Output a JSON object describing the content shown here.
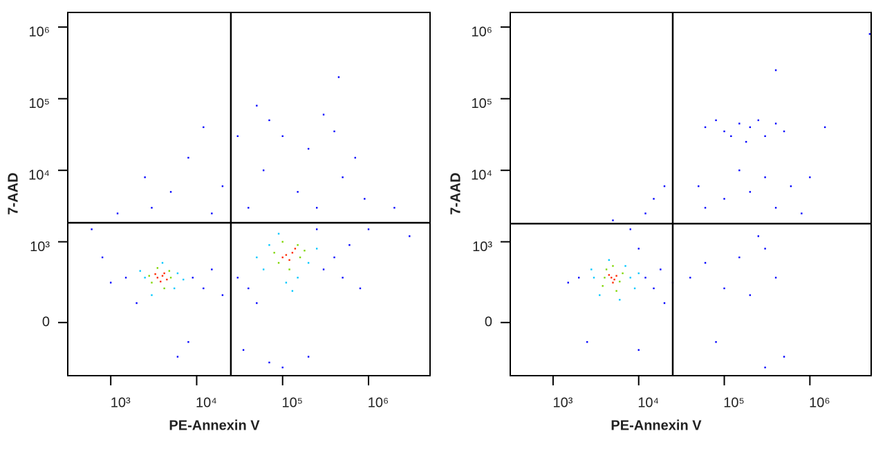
{
  "chart_data": [
    {
      "type": "scatter",
      "xlabel": "PE-Annexin V",
      "ylabel": "7-AAD",
      "xscale": "log",
      "yscale": "biexponential",
      "xlim": [
        316,
        5200000
      ],
      "ylim": [
        -400,
        1600000
      ],
      "xticks": [
        {
          "value": 1000,
          "label": "10³"
        },
        {
          "value": 10000,
          "label": "10⁴"
        },
        {
          "value": 100000,
          "label": "10⁵"
        },
        {
          "value": 1000000,
          "label": "10⁶"
        }
      ],
      "yticks": [
        0,
        {
          "value": 1000,
          "label": "10³"
        },
        {
          "value": 10000,
          "label": "10⁴"
        },
        {
          "value": 100000,
          "label": "10⁵"
        },
        {
          "value": 1000000,
          "label": "10⁶"
        }
      ],
      "gates": {
        "x": 25000,
        "y": 1850
      },
      "series": [
        {
          "color": "#0000ff",
          "x": [
            1500,
            1000,
            2000,
            9000,
            12000,
            15000,
            20000,
            8000,
            6000,
            30000,
            40000,
            35000,
            50000,
            300000,
            400000,
            500000,
            600000,
            800000,
            200000,
            100000,
            70000,
            250000,
            3000,
            5000,
            2500,
            8000,
            12000,
            1200,
            600,
            40000,
            60000,
            100000,
            200000,
            300000,
            150000,
            500000,
            400000,
            70000,
            30000,
            250000,
            900000,
            50000,
            450000,
            20000,
            15000,
            700000,
            2000000,
            1000000,
            800,
            3000000
          ],
          "y": [
            300,
            250,
            100,
            300,
            200,
            400,
            150,
            -100,
            -200,
            300,
            200,
            -150,
            100,
            400,
            600,
            300,
            900,
            200,
            -200,
            -300,
            -250,
            1500,
            3000,
            5000,
            8000,
            15000,
            40000,
            2500,
            1500,
            3000,
            10000,
            30000,
            20000,
            60000,
            5000,
            8000,
            35000,
            50000,
            30000,
            3000,
            4000,
            80000,
            200000,
            6000,
            2500,
            15000,
            3000,
            1500,
            600,
            1200
          ]
        },
        {
          "color": "#00c8ff",
          "x": [
            2500,
            6000,
            3000,
            5500,
            4000,
            2200,
            7000,
            60000,
            200000,
            70000,
            250000,
            110000,
            90000,
            150000,
            50000,
            130000
          ],
          "y": [
            300,
            350,
            150,
            200,
            500,
            380,
            280,
            400,
            500,
            900,
            800,
            250,
            1300,
            300,
            600,
            180
          ]
        },
        {
          "color": "#7fd600",
          "x": [
            3000,
            5000,
            3500,
            4800,
            2800,
            4200,
            90000,
            150000,
            80000,
            160000,
            120000,
            100000,
            180000
          ],
          "y": [
            250,
            300,
            420,
            380,
            320,
            200,
            500,
            900,
            700,
            600,
            400,
            1000,
            750
          ]
        },
        {
          "color": "#ff2a00",
          "x": [
            3500,
            4000,
            3800,
            4200,
            3300,
            4500,
            110000,
            130000,
            120000,
            100000,
            140000
          ],
          "y": [
            300,
            320,
            260,
            350,
            340,
            280,
            650,
            700,
            550,
            600,
            800
          ]
        }
      ]
    },
    {
      "type": "scatter",
      "xlabel": "PE-Annexin V",
      "ylabel": "7-AAD",
      "xscale": "log",
      "yscale": "biexponential",
      "xlim": [
        316,
        5200000
      ],
      "ylim": [
        -400,
        1600000
      ],
      "xticks": [
        {
          "value": 1000,
          "label": "10³"
        },
        {
          "value": 10000,
          "label": "10⁴"
        },
        {
          "value": 100000,
          "label": "10⁵"
        },
        {
          "value": 1000000,
          "label": "10⁶"
        }
      ],
      "yticks": [
        0,
        {
          "value": 1000,
          "label": "10³"
        },
        {
          "value": 10000,
          "label": "10⁴"
        },
        {
          "value": 100000,
          "label": "10⁵"
        },
        {
          "value": 1000000,
          "label": "10⁶"
        }
      ],
      "gates": {
        "x": 25000,
        "y": 1800
      },
      "series": [
        {
          "color": "#0000ff",
          "x": [
            2000,
            1500,
            12000,
            15000,
            18000,
            20000,
            2500,
            10000,
            25000,
            40000,
            60000,
            100000,
            150000,
            200000,
            300000,
            400000,
            500000,
            300000,
            80000,
            250000,
            10000,
            8000,
            12000,
            15000,
            20000,
            5000,
            60000,
            100000,
            150000,
            200000,
            250000,
            300000,
            400000,
            120000,
            180000,
            500000,
            80000,
            300000,
            200000,
            100000,
            600000,
            400000,
            150000,
            1000000,
            1500000,
            400000,
            60000,
            800000,
            5000000,
            50000
          ],
          "y": [
            300,
            250,
            300,
            200,
            400,
            100,
            -100,
            -150,
            250,
            300,
            500,
            200,
            600,
            150,
            800,
            300,
            -200,
            -300,
            -100,
            1200,
            800,
            1500,
            2500,
            4000,
            6000,
            2000,
            40000,
            35000,
            45000,
            40000,
            50000,
            30000,
            45000,
            30000,
            25000,
            35000,
            50000,
            8000,
            5000,
            4000,
            6000,
            3000,
            10000,
            8000,
            40000,
            250000,
            3000,
            2500,
            800000,
            6000
          ]
        },
        {
          "color": "#00c8ff",
          "x": [
            3000,
            8000,
            3500,
            7000,
            2800,
            9000,
            4500,
            6000,
            10000
          ],
          "y": [
            300,
            300,
            150,
            450,
            400,
            200,
            550,
            120,
            350
          ]
        },
        {
          "color": "#7fd600",
          "x": [
            4000,
            6000,
            4200,
            6500,
            3800,
            5500,
            5000
          ],
          "y": [
            300,
            260,
            400,
            350,
            220,
            180,
            450
          ]
        },
        {
          "color": "#ff2a00",
          "x": [
            4800,
            5200,
            4500,
            5500,
            5000
          ],
          "y": [
            300,
            280,
            330,
            320,
            250
          ]
        }
      ]
    }
  ]
}
